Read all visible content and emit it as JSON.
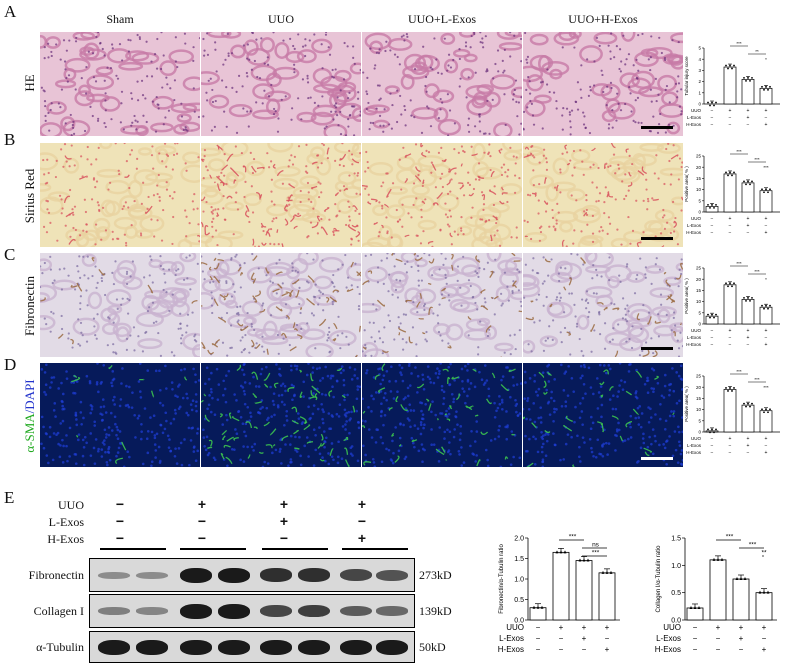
{
  "panels": {
    "A": "A",
    "B": "B",
    "C": "C",
    "D": "D",
    "E": "E"
  },
  "groups": [
    "Sham",
    "UUO",
    "UUO+L-Exos",
    "UUO+H-Exos"
  ],
  "rows": [
    "HE",
    "Sirius Red",
    "Fibronectin",
    "α-SMA/DAPI"
  ],
  "row_label_colors": {
    "alpha_sma": "#22aa22",
    "dapi": "#2233cc",
    "slash": "#2233cc"
  },
  "image_colors": {
    "HE": {
      "bg": "#e8c4d6",
      "tissue": "#c77aa6",
      "nuclei": "#6a2f7a"
    },
    "Sirius Red": {
      "bg": "#efe3b8",
      "tissue": "#e8d2a0",
      "stain": "#d8505c"
    },
    "Fibronectin": {
      "bg": "#e2dbe6",
      "tissue": "#c9b3cf",
      "nuclei": "#7a6aa0",
      "stain": "#9a6a40"
    },
    "α-SMA/DAPI": {
      "bg": "#061a5a",
      "nuclei": "#1f3fd8",
      "stain": "#3fcf4f"
    }
  },
  "mini_charts": [
    {
      "type": "bar",
      "ylabel": "Tubular injury score",
      "yticks": [
        "0",
        "1",
        "2",
        "3",
        "4",
        "5"
      ],
      "ylim": [
        0,
        5
      ],
      "values": [
        0,
        3.3,
        2.2,
        1.4
      ],
      "significance": [
        {
          "from": 1,
          "to": 2,
          "text": "***"
        },
        {
          "from": 2,
          "to": 3,
          "text": "**"
        },
        {
          "from": 3,
          "to": 4,
          "text": "*"
        }
      ]
    },
    {
      "type": "bar",
      "ylabel": "Positive area( % )",
      "yticks": [
        "0",
        "5",
        "10",
        "15",
        "20",
        "25"
      ],
      "ylim": [
        0,
        25
      ],
      "values": [
        2.5,
        17,
        13,
        9.5
      ],
      "significance": [
        {
          "from": 1,
          "to": 2,
          "text": "***"
        },
        {
          "from": 2,
          "to": 3,
          "text": "***"
        },
        {
          "from": 3,
          "to": 4,
          "text": "***"
        }
      ]
    },
    {
      "type": "bar",
      "ylabel": "Positive area( % )",
      "yticks": [
        "0",
        "5",
        "10",
        "15",
        "20",
        "25"
      ],
      "ylim": [
        0,
        25
      ],
      "values": [
        3.5,
        17.5,
        11,
        7.5
      ],
      "significance": [
        {
          "from": 1,
          "to": 2,
          "text": "***"
        },
        {
          "from": 2,
          "to": 3,
          "text": "***"
        },
        {
          "from": 3,
          "to": 4,
          "text": "*"
        }
      ]
    },
    {
      "type": "bar",
      "ylabel": "Positive area( % )",
      "yticks": [
        "0",
        "5",
        "10",
        "15",
        "20",
        "25"
      ],
      "ylim": [
        0,
        25
      ],
      "values": [
        0.5,
        19,
        12,
        9.5
      ],
      "significance": [
        {
          "from": 1,
          "to": 2,
          "text": "***"
        },
        {
          "from": 2,
          "to": 3,
          "text": "***"
        },
        {
          "from": 3,
          "to": 4,
          "text": "***"
        }
      ]
    }
  ],
  "mini_table": {
    "rows": [
      "UUO",
      "L-Exos",
      "H-Exos"
    ],
    "cells": [
      [
        "−",
        "+",
        "+",
        "+"
      ],
      [
        "−",
        "−",
        "+",
        "−"
      ],
      [
        "−",
        "−",
        "−",
        "+"
      ]
    ]
  },
  "blot": {
    "treatment_rows": [
      "UUO",
      "L-Exos",
      "H-Exos"
    ],
    "symbols": [
      [
        "−",
        "+",
        "+",
        "+"
      ],
      [
        "−",
        "−",
        "+",
        "−"
      ],
      [
        "−",
        "−",
        "−",
        "+"
      ]
    ],
    "proteins": [
      {
        "name": "Fibronectin",
        "size": "273kD",
        "intensity": [
          0.2,
          0.2,
          1,
          1,
          0.85,
          0.85,
          0.7,
          0.6
        ]
      },
      {
        "name": "Collagen I",
        "size": "139kD",
        "intensity": [
          0.3,
          0.25,
          1,
          1,
          0.7,
          0.75,
          0.55,
          0.45
        ]
      },
      {
        "name": "α-Tubulin",
        "size": "50kD",
        "intensity": [
          1,
          1,
          1,
          1,
          1,
          1,
          1,
          1
        ]
      }
    ]
  },
  "chart_data": [
    {
      "type": "bar",
      "title": "",
      "ylabel": "Fibronectin/α-Tubulin ratio",
      "ylim": [
        0,
        2.0
      ],
      "yticks": [
        "0.0",
        "0.5",
        "1.0",
        "1.5",
        "2.0"
      ],
      "categories": [
        "Sham",
        "UUO",
        "UUO+L-Exos",
        "UUO+H-Exos"
      ],
      "values": [
        0.3,
        1.65,
        1.45,
        1.15
      ],
      "significance": [
        {
          "from": 1,
          "to": 2,
          "text": "***"
        },
        {
          "from": 2,
          "to": 3,
          "text": "ns"
        },
        {
          "from": 2,
          "to": 4,
          "text": "***"
        }
      ],
      "table_rows": [
        "UUO",
        "L-Exos",
        "H-Exos"
      ],
      "table_cells": [
        [
          "−",
          "+",
          "+",
          "+"
        ],
        [
          "−",
          "−",
          "+",
          "−"
        ],
        [
          "−",
          "−",
          "−",
          "+"
        ]
      ]
    },
    {
      "type": "bar",
      "title": "",
      "ylabel": "Collagen I/α-Tubulin ratio",
      "ylim": [
        0,
        1.5
      ],
      "yticks": [
        "0.0",
        "0.5",
        "1.0",
        "1.5"
      ],
      "categories": [
        "Sham",
        "UUO",
        "UUO+L-Exos",
        "UUO+H-Exos"
      ],
      "values": [
        0.22,
        1.1,
        0.75,
        0.5
      ],
      "significance": [
        {
          "from": 1,
          "to": 2,
          "text": "***"
        },
        {
          "from": 2,
          "to": 3,
          "text": "***"
        },
        {
          "from": 3,
          "to": 4,
          "text": "**"
        }
      ],
      "table_rows": [
        "UUO",
        "L-Exos",
        "H-Exos"
      ],
      "table_cells": [
        [
          "−",
          "+",
          "+",
          "+"
        ],
        [
          "−",
          "−",
          "+",
          "−"
        ],
        [
          "−",
          "−",
          "−",
          "+"
        ]
      ]
    }
  ]
}
